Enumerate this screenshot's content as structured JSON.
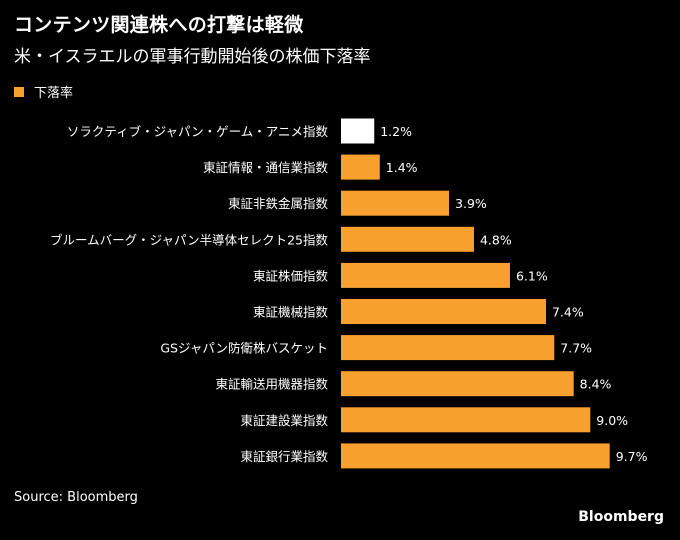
{
  "colors": {
    "background": "#000000",
    "bar": "#f9a12e",
    "highlight_bar": "#ffffff",
    "text": "#ffffff"
  },
  "header": {
    "title": "コンテンツ関連株への打撃は軽微",
    "subtitle": "米・イスラエルの軍事行動開始後の株価下落率"
  },
  "legend": {
    "label": "下落率"
  },
  "footer": {
    "source": "Source: Bloomberg",
    "brand": "Bloomberg"
  },
  "chart_data": {
    "type": "bar",
    "orientation": "horizontal",
    "title": "コンテンツ関連株への打撃は軽微",
    "subtitle": "米・イスラエルの軍事行動開始後の株価下落率",
    "legend": [
      "下落率"
    ],
    "legend_position": "top-left",
    "categories": [
      "ソラクティブ・ジャパン・ゲーム・アニメ指数",
      "東証情報・通信業指数",
      "東証非鉄金属指数",
      "ブルームバーグ・ジャパン半導体セレクト25指数",
      "東証株価指数",
      "東証機械指数",
      "GSジャパン防衛株バスケット",
      "東証輸送用機器指数",
      "東証建設業指数",
      "東証銀行業指数"
    ],
    "values": [
      1.2,
      1.4,
      3.9,
      4.8,
      6.1,
      7.4,
      7.7,
      8.4,
      9.0,
      9.7
    ],
    "value_labels": [
      "1.2%",
      "1.4%",
      "3.9%",
      "4.8%",
      "6.1%",
      "7.4%",
      "7.7%",
      "8.4%",
      "9.0%",
      "9.7%"
    ],
    "highlight_index": 0,
    "xlim": [
      0,
      10
    ],
    "unit": "%",
    "grid": false
  }
}
